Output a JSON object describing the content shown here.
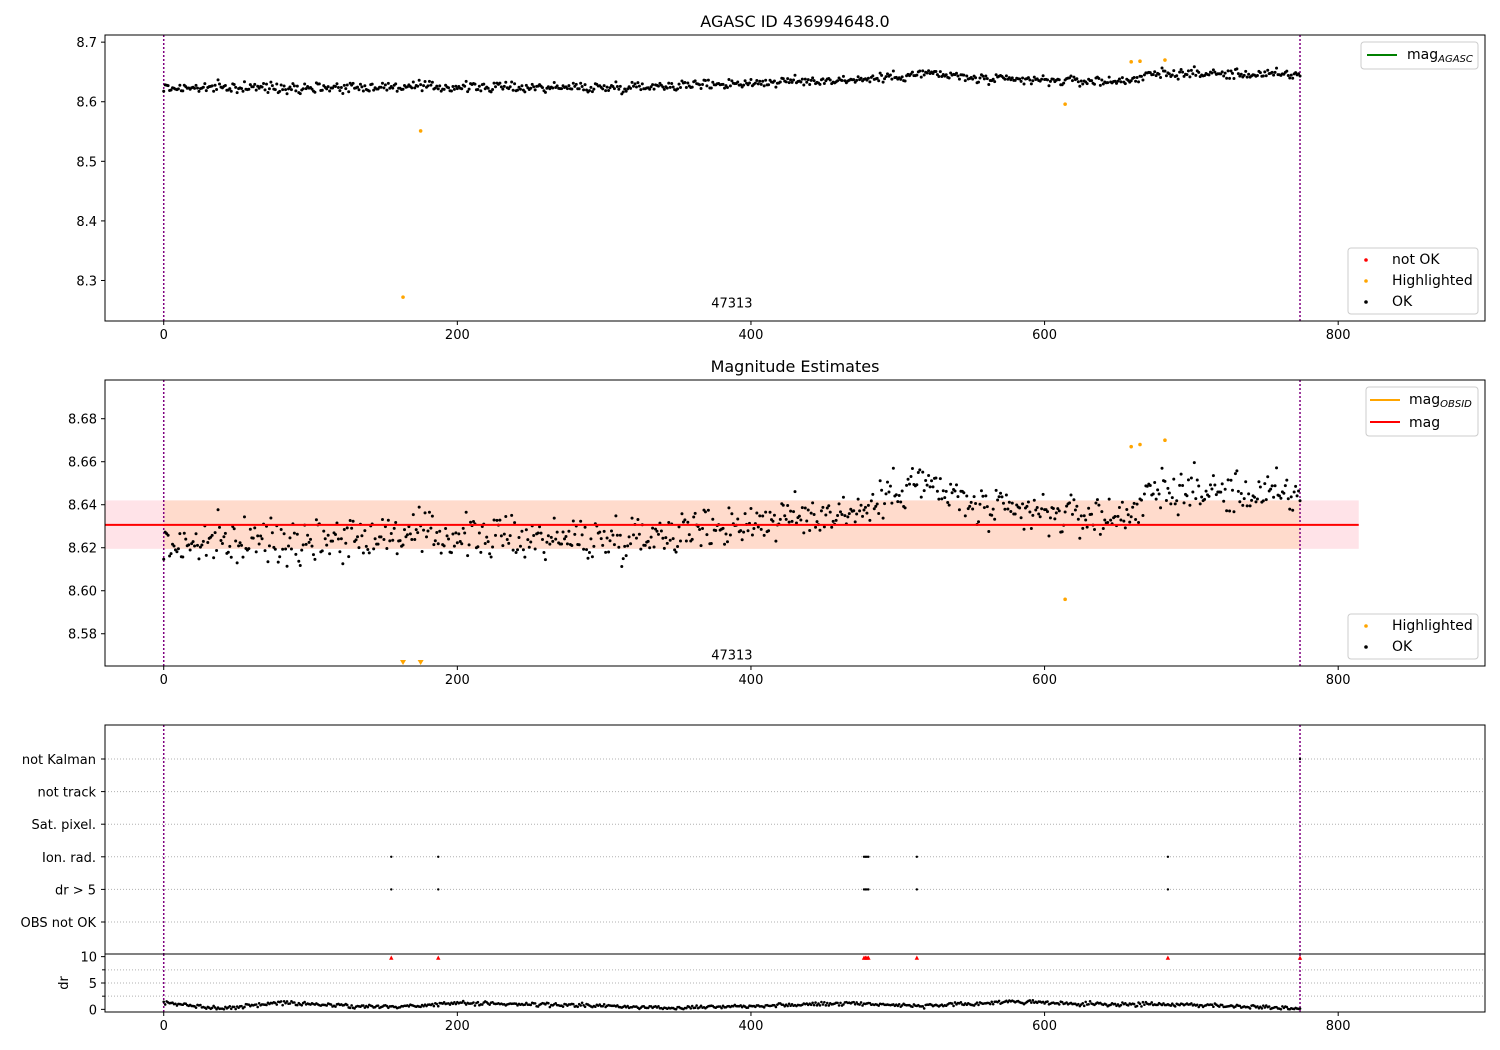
{
  "figure": {
    "background": "#ffffff"
  },
  "colors": {
    "ok": "#000000",
    "highlighted": "#ffa500",
    "not_ok": "#ff0000",
    "mag_agasc": "#008000",
    "mag_obsid": "#ffa500",
    "mag": "#ff0000",
    "band_fill": "#ffc0cb",
    "band_inner": "#ffd8c4",
    "boundary": "#800080",
    "grid": "#b0b0b0"
  },
  "chart_data": [
    {
      "id": "top",
      "type": "scatter",
      "title": "AGASC ID 436994648.0",
      "xlim": [
        -40,
        900
      ],
      "ylim": [
        8.232,
        8.712
      ],
      "x_ticks": [
        0,
        200,
        400,
        600,
        800
      ],
      "y_ticks": [
        8.3,
        8.4,
        8.5,
        8.6,
        8.7
      ],
      "y_tick_labels": [
        "8.3",
        "8.4",
        "8.5",
        "8.6",
        "8.7"
      ],
      "obsid_boundaries": [
        0,
        774
      ],
      "annotation": {
        "text": "47313",
        "x": 387,
        "y": 8.255
      },
      "line_legend": [
        {
          "label": "mag",
          "sub": "AGASC",
          "color_key": "mag_agasc"
        }
      ],
      "marker_legend": [
        {
          "label": "not OK",
          "color_key": "not_ok"
        },
        {
          "label": "Highlighted",
          "color_key": "highlighted"
        },
        {
          "label": "OK",
          "color_key": "ok"
        }
      ],
      "ok_series": {
        "n": 775,
        "x_start": 0,
        "x_step": 1,
        "base": 8.6245,
        "trend": [
          [
            0,
            8.623
          ],
          [
            150,
            8.625
          ],
          [
            300,
            8.624
          ],
          [
            480,
            8.638
          ],
          [
            520,
            8.648
          ],
          [
            560,
            8.637
          ],
          [
            650,
            8.634
          ],
          [
            680,
            8.648
          ],
          [
            774,
            8.645
          ]
        ],
        "scatter": 0.006
      },
      "highlighted": [
        {
          "x": 163,
          "y": 8.272
        },
        {
          "x": 175,
          "y": 8.551
        },
        {
          "x": 614,
          "y": 8.596
        },
        {
          "x": 659,
          "y": 8.667
        },
        {
          "x": 665,
          "y": 8.668
        },
        {
          "x": 682,
          "y": 8.67
        }
      ]
    },
    {
      "id": "middle",
      "type": "scatter",
      "title": "Magnitude Estimates",
      "xlim": [
        -40,
        900
      ],
      "ylim": [
        8.565,
        8.698
      ],
      "x_ticks": [
        0,
        200,
        400,
        600,
        800
      ],
      "y_ticks": [
        8.58,
        8.6,
        8.62,
        8.64,
        8.66,
        8.68
      ],
      "y_tick_labels": [
        "8.58",
        "8.60",
        "8.62",
        "8.64",
        "8.66",
        "8.68"
      ],
      "obsid_boundaries": [
        0,
        774
      ],
      "annotation": {
        "text": "47313",
        "x": 387,
        "y": 8.568
      },
      "mag_line": {
        "y": 8.6306,
        "x_range": [
          -40,
          814
        ]
      },
      "mag_band": {
        "y_low": 8.6195,
        "y_high": 8.642,
        "x_range": [
          -40,
          814
        ]
      },
      "line_legend": [
        {
          "label": "mag",
          "sub": "OBSID",
          "color_key": "mag_obsid"
        },
        {
          "label": "mag",
          "sub": "",
          "color_key": "mag"
        }
      ],
      "marker_legend": [
        {
          "label": "Highlighted",
          "color_key": "highlighted"
        },
        {
          "label": "OK",
          "color_key": "ok"
        }
      ],
      "ok_series": {
        "n": 775,
        "x_start": 0,
        "x_step": 1,
        "base": 8.6245,
        "trend": [
          [
            0,
            8.621
          ],
          [
            150,
            8.626
          ],
          [
            300,
            8.624
          ],
          [
            480,
            8.638
          ],
          [
            510,
            8.652
          ],
          [
            560,
            8.637
          ],
          [
            650,
            8.634
          ],
          [
            680,
            8.647
          ],
          [
            774,
            8.644
          ]
        ],
        "scatter": 0.007
      },
      "highlighted": [
        {
          "x": 614,
          "y": 8.596
        },
        {
          "x": 659,
          "y": 8.667
        },
        {
          "x": 665,
          "y": 8.668
        },
        {
          "x": 682,
          "y": 8.67
        }
      ],
      "off_scale_low": [
        {
          "x": 163
        },
        {
          "x": 175
        }
      ]
    },
    {
      "id": "flags",
      "type": "scatter",
      "xlim": [
        -40,
        900
      ],
      "categories": [
        "not Kalman",
        "not track",
        "Sat. pixel.",
        "Ion. rad.",
        "dr > 5",
        "OBS not OK"
      ],
      "flag_x": {
        "Ion. rad.": [
          155,
          187,
          477,
          478,
          479,
          480,
          513,
          684
        ],
        "dr > 5": [
          155,
          187,
          477,
          478,
          479,
          480,
          513,
          684
        ],
        "not Kalman": [
          774
        ]
      },
      "obsid_boundaries": [
        0,
        774
      ]
    },
    {
      "id": "dr",
      "type": "scatter",
      "xlim": [
        -40,
        900
      ],
      "ylim": [
        -0.5,
        10.5
      ],
      "ylabel": "dr",
      "x_ticks": [
        0,
        200,
        400,
        600,
        800
      ],
      "y_ticks": [
        0,
        5,
        10
      ],
      "y_tick_labels": [
        "0",
        "5",
        "10"
      ],
      "obsid_boundaries": [
        0,
        774
      ],
      "dr_over_limit_x": [
        155,
        187,
        477,
        478,
        479,
        480,
        513,
        684,
        774
      ],
      "dr_series": {
        "n": 775,
        "x_start": 0,
        "x_step": 1,
        "trend": [
          [
            0,
            1.2
          ],
          [
            40,
            0.2
          ],
          [
            80,
            1.3
          ],
          [
            130,
            0.6
          ],
          [
            160,
            0.5
          ],
          [
            200,
            1.2
          ],
          [
            280,
            0.8
          ],
          [
            340,
            0.3
          ],
          [
            420,
            0.8
          ],
          [
            470,
            1.2
          ],
          [
            520,
            0.6
          ],
          [
            580,
            1.5
          ],
          [
            620,
            1.0
          ],
          [
            700,
            0.9
          ],
          [
            774,
            0.2
          ]
        ],
        "scatter": 0.18
      }
    }
  ]
}
